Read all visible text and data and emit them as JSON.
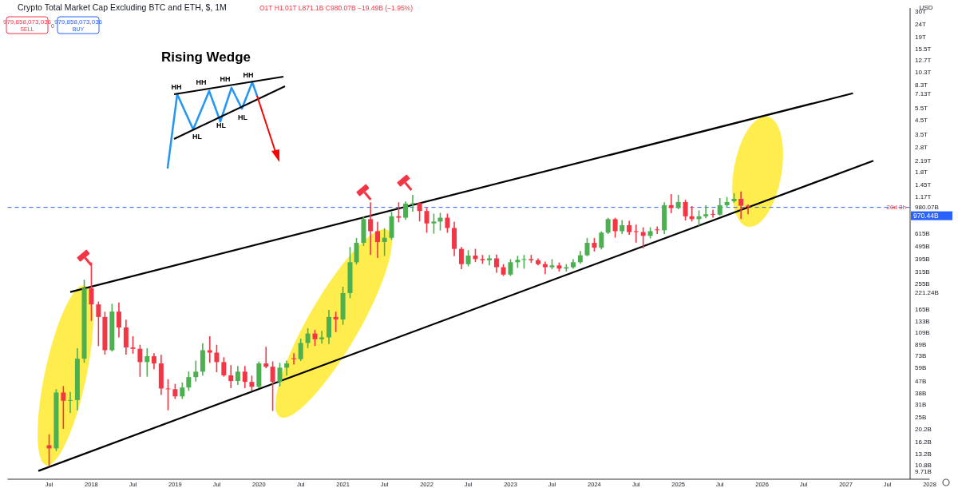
{
  "chart_data": {
    "type": "candlestick",
    "title": "Crypto Total Market Cap Excluding BTC and ETH, $, 1M",
    "subtitle": "O1T H1.01T L871.1B C980.07B −19.49B (−1.95%)",
    "annotations": [
      "979,858,073,036",
      "SELL",
      "0",
      "979,858,073,036",
      "BUY",
      "USD",
      "20d 3h",
      "Rising Wedge",
      "HH",
      "HH",
      "HH",
      "HH",
      "HL",
      "HL",
      "HL"
    ],
    "x": [
      "2017-07",
      "2017-08",
      "2017-09",
      "2017-10",
      "2017-11",
      "2017-12",
      "2018-01",
      "2018-02",
      "2018-03",
      "2018-04",
      "2018-05",
      "2018-06",
      "2018-07",
      "2018-08",
      "2018-09",
      "2018-10",
      "2018-11",
      "2018-12",
      "2019-01",
      "2019-02",
      "2019-03",
      "2019-04",
      "2019-05",
      "2019-06",
      "2019-07",
      "2019-08",
      "2019-09",
      "2019-10",
      "2019-11",
      "2019-12",
      "2020-01",
      "2020-02",
      "2020-03",
      "2020-04",
      "2020-05",
      "2020-06",
      "2020-07",
      "2020-08",
      "2020-09",
      "2020-10",
      "2020-11",
      "2020-12",
      "2021-01",
      "2021-02",
      "2021-03",
      "2021-04",
      "2021-05",
      "2021-06",
      "2021-07",
      "2021-08",
      "2021-09",
      "2021-10",
      "2021-11",
      "2021-12",
      "2022-01",
      "2022-02",
      "2022-03",
      "2022-04",
      "2022-05",
      "2022-06",
      "2022-07",
      "2022-08",
      "2022-09",
      "2022-10",
      "2022-11",
      "2022-12",
      "2023-01",
      "2023-02",
      "2023-03",
      "2023-04",
      "2023-05",
      "2023-06",
      "2023-07",
      "2023-08",
      "2023-09",
      "2023-10",
      "2023-11",
      "2023-12",
      "2024-01",
      "2024-02",
      "2024-03",
      "2024-04",
      "2024-05",
      "2024-06",
      "2024-07",
      "2024-08",
      "2024-09",
      "2024-10",
      "2024-11",
      "2024-12",
      "2025-01",
      "2025-02",
      "2025-03",
      "2025-04",
      "2025-05",
      "2025-06",
      "2025-07",
      "2025-08",
      "2025-09",
      "2025-10",
      "2025-11"
    ],
    "ohlc": [
      [
        15200000000.0,
        18200000000.0,
        10650000000.0,
        14400000000.0
      ],
      [
        14400000000.0,
        40000000000.0,
        13900000000.0,
        38200000000.0
      ],
      [
        38200000000.0,
        42300000000.0,
        20500000000.0,
        33100000000.0
      ],
      [
        33100000000.0,
        38200000000.0,
        27000000000.0,
        33500000000.0
      ],
      [
        33500000000.0,
        82000000000.0,
        28300000000.0,
        69000000000.0
      ],
      [
        69000000000.0,
        271000000000.0,
        65000000000.0,
        236000000000.0
      ],
      [
        236000000000.0,
        367000000000.0,
        135000000000.0,
        178000000000.0
      ],
      [
        178000000000.0,
        185000000000.0,
        87000000000.0,
        143000000000.0
      ],
      [
        143000000000.0,
        155000000000.0,
        75000000000.0,
        80000000000.0
      ],
      [
        80000000000.0,
        178000000000.0,
        79000000000.0,
        157000000000.0
      ],
      [
        157000000000.0,
        182000000000.0,
        101000000000.0,
        119000000000.0
      ],
      [
        119000000000.0,
        135000000000.0,
        75000000000.0,
        84000000000.0
      ],
      [
        84000000000.0,
        101000000000.0,
        76000000000.0,
        82000000000.0
      ],
      [
        82000000000.0,
        87000000000.0,
        50800000000.0,
        65000000000.0
      ],
      [
        65000000000.0,
        82000000000.0,
        51000000000.0,
        72000000000.0
      ],
      [
        72000000000.0,
        75000000000.0,
        58000000000.0,
        63500000000.0
      ],
      [
        63500000000.0,
        73000000000.0,
        37000000000.0,
        41000000000.0
      ],
      [
        41000000000.0,
        47700000000.0,
        28300000000.0,
        40500000000.0
      ],
      [
        40500000000.0,
        43900000000.0,
        34500000000.0,
        35700000000.0
      ],
      [
        35700000000.0,
        45000000000.0,
        34500000000.0,
        41700000000.0
      ],
      [
        41700000000.0,
        54500000000.0,
        39800000000.0,
        50000000000.0
      ],
      [
        50000000000.0,
        66000000000.0,
        46800000000.0,
        55000000000.0
      ],
      [
        55000000000.0,
        89500000000.0,
        52000000000.0,
        80000000000.0
      ],
      [
        80000000000.0,
        101000000000.0,
        65000000000.0,
        76700000000.0
      ],
      [
        76700000000.0,
        87000000000.0,
        55000000000.0,
        65000000000.0
      ],
      [
        65000000000.0,
        70000000000.0,
        51000000000.0,
        51600000000.0
      ],
      [
        51600000000.0,
        61000000000.0,
        41700000000.0,
        46700000000.0
      ],
      [
        46700000000.0,
        60000000000.0,
        44000000000.0,
        55000000000.0
      ],
      [
        55000000000.0,
        60000000000.0,
        41700000000.0,
        46000000000.0
      ],
      [
        46000000000.0,
        50800000000.0,
        39800000000.0,
        42200000000.0
      ],
      [
        42200000000.0,
        65000000000.0,
        41700000000.0,
        63500000000.0
      ],
      [
        63500000000.0,
        84000000000.0,
        59000000000.0,
        60000000000.0
      ],
      [
        60000000000.0,
        65000000000.0,
        28000000000.0,
        46000000000.0
      ],
      [
        46000000000.0,
        63500000000.0,
        43000000000.0,
        59000000000.0
      ],
      [
        59000000000.0,
        66000000000.0,
        52000000000.0,
        63500000000.0
      ],
      [
        69500000000.0,
        75000000000.0,
        63000000000.0,
        68500000000.0
      ],
      [
        68500000000.0,
        97000000000.0,
        67000000000.0,
        90800000000.0
      ],
      [
        90800000000.0,
        116000000000.0,
        84000000000.0,
        107000000000.0
      ],
      [
        107000000000.0,
        113000000000.0,
        87000000000.0,
        97000000000.0
      ],
      [
        97000000000.0,
        111000000000.0,
        90800000000.0,
        100000000000.0
      ],
      [
        100000000000.0,
        160000000000.0,
        90000000000.0,
        143000000000.0
      ],
      [
        143000000000.0,
        155000000000.0,
        111000000000.0,
        137000000000.0
      ],
      [
        137000000000.0,
        240000000000.0,
        126000000000.0,
        217000000000.0
      ],
      [
        217000000000.0,
        480000000000.0,
        201000000000.0,
        372000000000.0
      ],
      [
        372000000000.0,
        563000000000.0,
        362000000000.0,
        522000000000.0
      ],
      [
        522000000000.0,
        814000000000.0,
        501000000000.0,
        790000000000.0
      ],
      [
        790000000000.0,
        1050000000000.0,
        427000000000.0,
        640000000000.0
      ],
      [
        640000000000.0,
        745000000000.0,
        405000000000.0,
        530000000000.0
      ],
      [
        530000000000.0,
        666000000000.0,
        420000000000.0,
        570000000000.0
      ],
      [
        570000000000.0,
        886000000000.0,
        555000000000.0,
        830000000000.0
      ],
      [
        830000000000.0,
        1050000000000.0,
        757000000000.0,
        810000000000.0
      ],
      [
        810000000000.0,
        1065000000000.0,
        790000000000.0,
        1036000000000.0
      ],
      [
        1036000000000.0,
        1195000000000.0,
        910000000000.0,
        1045000000000.0
      ],
      [
        1045000000000.0,
        1050000000000.0,
        768000000000.0,
        910000000000.0
      ],
      [
        910000000000.0,
        950000000000.0,
        630000000000.0,
        733000000000.0
      ],
      [
        733000000000.0,
        860000000000.0,
        620000000000.0,
        757000000000.0
      ],
      [
        757000000000.0,
        873000000000.0,
        655000000000.0,
        810000000000.0
      ],
      [
        810000000000.0,
        860000000000.0,
        630000000000.0,
        677000000000.0
      ],
      [
        677000000000.0,
        745000000000.0,
        418000000000.0,
        470000000000.0
      ],
      [
        470000000000.0,
        480000000000.0,
        333000000000.0,
        360000000000.0
      ],
      [
        360000000000.0,
        454000000000.0,
        350000000000.0,
        418000000000.0
      ],
      [
        418000000000.0,
        465000000000.0,
        377000000000.0,
        393000000000.0
      ],
      [
        393000000000.0,
        418000000000.0,
        366000000000.0,
        385000000000.0
      ],
      [
        385000000000.0,
        418000000000.0,
        356000000000.0,
        398000000000.0
      ],
      [
        398000000000.0,
        420000000000.0,
        313000000000.0,
        341000000000.0
      ],
      [
        341000000000.0,
        356000000000.0,
        296000000000.0,
        300000000000.0
      ],
      [
        300000000000.0,
        388000000000.0,
        296000000000.0,
        372000000000.0
      ],
      [
        372000000000.0,
        412000000000.0,
        341000000000.0,
        388000000000.0
      ],
      [
        388000000000.0,
        418000000000.0,
        336000000000.0,
        393000000000.0
      ],
      [
        393000000000.0,
        418000000000.0,
        372000000000.0,
        385000000000.0
      ],
      [
        385000000000.0,
        393000000000.0,
        356000000000.0,
        360000000000.0
      ],
      [
        360000000000.0,
        372000000000.0,
        305000000000.0,
        341000000000.0
      ],
      [
        341000000000.0,
        388000000000.0,
        333000000000.0,
        352000000000.0
      ],
      [
        352000000000.0,
        366000000000.0,
        320000000000.0,
        333000000000.0
      ],
      [
        333000000000.0,
        356000000000.0,
        320000000000.0,
        341000000000.0
      ],
      [
        341000000000.0,
        388000000000.0,
        336000000000.0,
        372000000000.0
      ],
      [
        372000000000.0,
        448000000000.0,
        366000000000.0,
        420000000000.0
      ],
      [
        420000000000.0,
        563000000000.0,
        418000000000.0,
        522000000000.0
      ],
      [
        522000000000.0,
        563000000000.0,
        454000000000.0,
        480000000000.0
      ],
      [
        480000000000.0,
        630000000000.0,
        470000000000.0,
        624000000000.0
      ],
      [
        624000000000.0,
        800000000000.0,
        616000000000.0,
        790000000000.0
      ],
      [
        790000000000.0,
        800000000000.0,
        578000000000.0,
        640000000000.0
      ],
      [
        640000000000.0,
        768000000000.0,
        616000000000.0,
        710000000000.0
      ],
      [
        710000000000.0,
        757000000000.0,
        607000000000.0,
        630000000000.0
      ],
      [
        640000000000.0,
        710000000000.0,
        530000000000.0,
        630000000000.0
      ],
      [
        630000000000.0,
        677000000000.0,
        480000000000.0,
        590000000000.0
      ],
      [
        590000000000.0,
        677000000000.0,
        570000000000.0,
        640000000000.0
      ],
      [
        660000000000.0,
        688000000000.0,
        616000000000.0,
        650000000000.0
      ],
      [
        650000000000.0,
        1050000000000.0,
        616000000000.0,
        1008000000000.0
      ],
      [
        1008000000000.0,
        1210000000000.0,
        886000000000.0,
        960000000000.0
      ],
      [
        960000000000.0,
        1195000000000.0,
        950000000000.0,
        1065000000000.0
      ],
      [
        1065000000000.0,
        1095000000000.0,
        780000000000.0,
        830000000000.0
      ],
      [
        830000000000.0,
        980000000000.0,
        768000000000.0,
        790000000000.0
      ],
      [
        790000000000.0,
        910000000000.0,
        710000000000.0,
        830000000000.0
      ],
      [
        830000000000.0,
        995000000000.0,
        810000000000.0,
        860000000000.0
      ],
      [
        865000000000.0,
        923000000000.0,
        820000000000.0,
        855000000000.0
      ],
      [
        855000000000.0,
        1130000000000.0,
        850000000000.0,
        1008000000000.0
      ],
      [
        1008000000000.0,
        1150000000000.0,
        980000000000.0,
        1065000000000.0
      ],
      [
        1080000000000.0,
        1230000000000.0,
        1065000000000.0,
        1125000000000.0
      ],
      [
        1125000000000.0,
        1265000000000.0,
        800000000000.0,
        1000000000000.0
      ],
      [
        1000000000000.0,
        1010000000000.0,
        871100000000.0,
        980070000000.0
      ]
    ],
    "series": [
      {
        "type": "line",
        "x": [
          "2017-10",
          "2027-02"
        ],
        "values": [
          221240000000.0,
          7130000000000.0
        ],
        "color": "#000000"
      },
      {
        "type": "line",
        "x": [
          "2017-05-15",
          "2027-05"
        ],
        "values": [
          9710000000.0,
          2190000000000.0
        ],
        "color": "#000000"
      }
    ],
    "ref_lines": [
      {
        "axis": "y",
        "value": 970440000000.0,
        "label": "970.44B",
        "color": "#2962ff",
        "line_style": "dashed"
      }
    ],
    "log": true,
    "ylim": [
      8400000000.0,
      31600000000000.0
    ],
    "xlim": [
      "2017-01",
      "2028-01"
    ],
    "yticks": [
      {
        "value": 9710000000.0,
        "label": "9.71B"
      },
      {
        "value": 10800000000.0,
        "label": "10.8B"
      },
      {
        "value": 13200000000.0,
        "label": "13.2B"
      },
      {
        "value": 16200000000.0,
        "label": "16.2B"
      },
      {
        "value": 20200000000.0,
        "label": "20.2B"
      },
      {
        "value": 25000000000.0,
        "label": "25B"
      },
      {
        "value": 31000000000.0,
        "label": "31B"
      },
      {
        "value": 38000000000.0,
        "label": "38B"
      },
      {
        "value": 47000000000.0,
        "label": "47B"
      },
      {
        "value": 59000000000.0,
        "label": "59B"
      },
      {
        "value": 73000000000.0,
        "label": "73B"
      },
      {
        "value": 89000000000.0,
        "label": "89B"
      },
      {
        "value": 109000000000.0,
        "label": "109B"
      },
      {
        "value": 133000000000.0,
        "label": "133B"
      },
      {
        "value": 165000000000.0,
        "label": "165B"
      },
      {
        "value": 221240000000.0,
        "label": "221.24B"
      },
      {
        "value": 255000000000.0,
        "label": "255B"
      },
      {
        "value": 315000000000.0,
        "label": "315B"
      },
      {
        "value": 395000000000.0,
        "label": "395B"
      },
      {
        "value": 495000000000.0,
        "label": "495B"
      },
      {
        "value": 615000000000.0,
        "label": "615B"
      },
      {
        "value": 980070000000.0,
        "label": "980.07B"
      },
      {
        "value": 1170000000000.0,
        "label": "1.17T"
      },
      {
        "value": 1450000000000.0,
        "label": "1.45T"
      },
      {
        "value": 1800000000000.0,
        "label": "1.8T"
      },
      {
        "value": 2190000000000.0,
        "label": "2.19T"
      },
      {
        "value": 2800000000000.0,
        "label": "2.8T"
      },
      {
        "value": 3500000000000.0,
        "label": "3.5T"
      },
      {
        "value": 4500000000000.0,
        "label": "4.5T"
      },
      {
        "value": 5500000000000.0,
        "label": "5.5T"
      },
      {
        "value": 7130000000000.0,
        "label": "7.13T"
      },
      {
        "value": 8300000000000.0,
        "label": "8.3T"
      },
      {
        "value": 10300000000000.0,
        "label": "10.3T"
      },
      {
        "value": 12700000000000.0,
        "label": "12.7T"
      },
      {
        "value": 15500000000000.0,
        "label": "15.5T"
      },
      {
        "value": 19000000000000.0,
        "label": "19T"
      },
      {
        "value": 24000000000000.0,
        "label": "24T"
      },
      {
        "value": 30000000000000.0,
        "label": "30T"
      }
    ],
    "xticks": [
      {
        "value": "2017-07",
        "label": "Jul"
      },
      {
        "value": "2018",
        "label": "2018"
      },
      {
        "value": "2018-07",
        "label": "Jul"
      },
      {
        "value": "2019",
        "label": "2019"
      },
      {
        "value": "2019-07",
        "label": "Jul"
      },
      {
        "value": "2020",
        "label": "2020"
      },
      {
        "value": "2020-07",
        "label": "Jul"
      },
      {
        "value": "2021",
        "label": "2021"
      },
      {
        "value": "2021-07",
        "label": "Jul"
      },
      {
        "value": "2022",
        "label": "2022"
      },
      {
        "value": "2022-07",
        "label": "Jul"
      },
      {
        "value": "2023",
        "label": "2023"
      },
      {
        "value": "2023-07",
        "label": "Jul"
      },
      {
        "value": "2024",
        "label": "2024"
      },
      {
        "value": "2024-07",
        "label": "Jul"
      },
      {
        "value": "2025",
        "label": "2025"
      },
      {
        "value": "2025-07",
        "label": "Jul"
      },
      {
        "value": "2026",
        "label": "2026"
      },
      {
        "value": "2026-07",
        "label": "Jul"
      },
      {
        "value": "2027",
        "label": "2027"
      },
      {
        "value": "2027-07",
        "label": "Jul"
      },
      {
        "value": "2028",
        "label": "2028"
      }
    ]
  }
}
